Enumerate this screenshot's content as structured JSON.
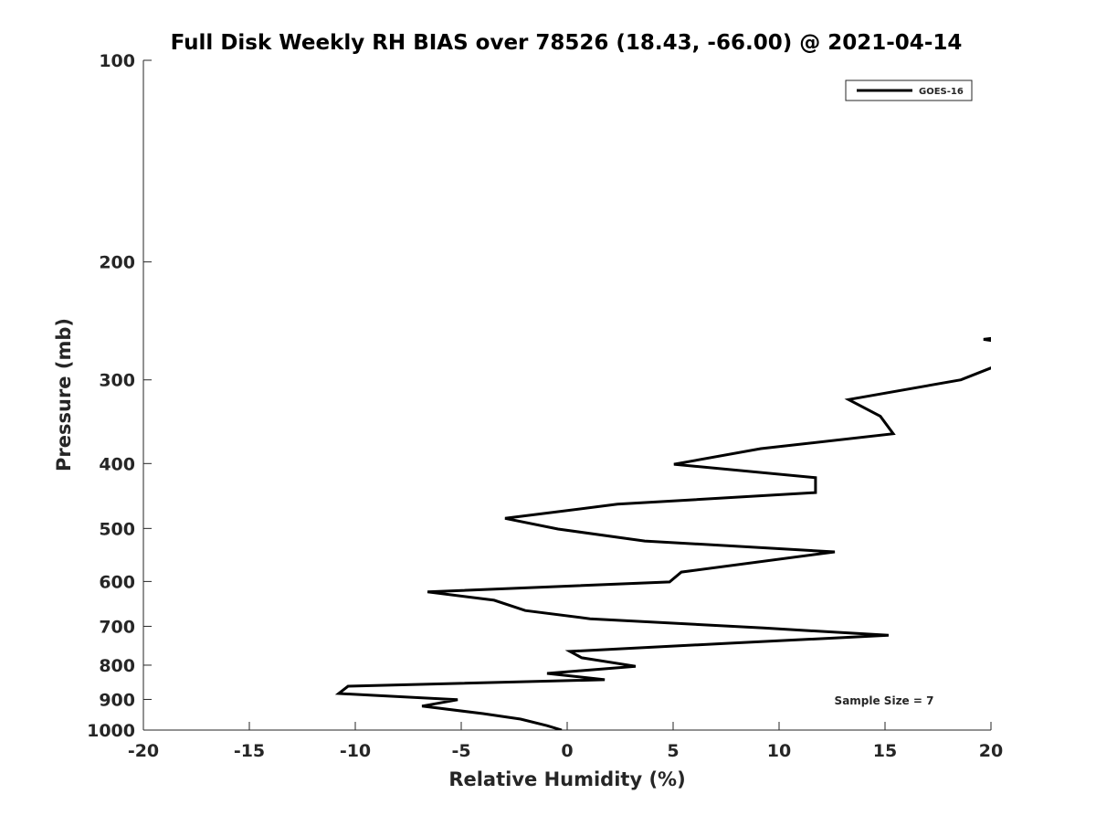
{
  "chart_data": {
    "type": "line",
    "title": "Full Disk Weekly RH BIAS over 78526 (18.43, -66.00) @ 2021-04-14",
    "xlabel": "Relative Humidity (%)",
    "ylabel": "Pressure (mb)",
    "xlim": [
      -20,
      20
    ],
    "ylim": [
      100,
      1000
    ],
    "yscale": "log",
    "y_reversed": true,
    "xticks": [
      "-20",
      "-15",
      "-10",
      "-5",
      "0",
      "5",
      "10",
      "15",
      "20"
    ],
    "yticks": [
      "100",
      "200",
      "300",
      "400",
      "500",
      "600",
      "700",
      "800",
      "900",
      "1000"
    ],
    "grid": false,
    "legend": {
      "placement": "top-right",
      "entries": [
        "GOES-16"
      ]
    },
    "annotation": "Sample Size = 7",
    "series": [
      {
        "name": "GOES-16",
        "color": "#000000",
        "segments": [
          [
            {
              "x": 21.0,
              "p": 258
            },
            {
              "x": 19.65,
              "p": 261
            },
            {
              "x": 21.0,
              "p": 265
            }
          ],
          [
            {
              "x": 20.5,
              "p": 284
            },
            {
              "x": 20.0,
              "p": 288
            },
            {
              "x": 18.58,
              "p": 300
            },
            {
              "x": 13.28,
              "p": 321
            },
            {
              "x": 14.78,
              "p": 340
            },
            {
              "x": 15.39,
              "p": 361
            },
            {
              "x": 9.14,
              "p": 380
            },
            {
              "x": 5.04,
              "p": 401
            },
            {
              "x": 11.72,
              "p": 420
            },
            {
              "x": 11.72,
              "p": 442
            },
            {
              "x": 2.37,
              "p": 460
            },
            {
              "x": -2.93,
              "p": 483
            },
            {
              "x": -0.43,
              "p": 501
            },
            {
              "x": 3.66,
              "p": 522
            },
            {
              "x": 12.63,
              "p": 542
            },
            {
              "x": 5.39,
              "p": 581
            },
            {
              "x": 4.83,
              "p": 601
            },
            {
              "x": -6.59,
              "p": 622
            },
            {
              "x": -3.45,
              "p": 640
            },
            {
              "x": -1.98,
              "p": 663
            },
            {
              "x": 1.08,
              "p": 682
            },
            {
              "x": 9.27,
              "p": 704
            },
            {
              "x": 15.17,
              "p": 722
            },
            {
              "x": 7.63,
              "p": 742
            },
            {
              "x": 0.13,
              "p": 763
            },
            {
              "x": 0.69,
              "p": 780
            },
            {
              "x": 3.23,
              "p": 803
            },
            {
              "x": -0.95,
              "p": 823
            },
            {
              "x": 1.77,
              "p": 841
            },
            {
              "x": -10.34,
              "p": 860
            },
            {
              "x": -10.78,
              "p": 882
            },
            {
              "x": -5.17,
              "p": 901
            },
            {
              "x": -6.85,
              "p": 921
            },
            {
              "x": -3.97,
              "p": 945
            },
            {
              "x": -2.2,
              "p": 963
            },
            {
              "x": -0.95,
              "p": 985
            },
            {
              "x": -0.26,
              "p": 1000
            }
          ]
        ]
      }
    ]
  }
}
